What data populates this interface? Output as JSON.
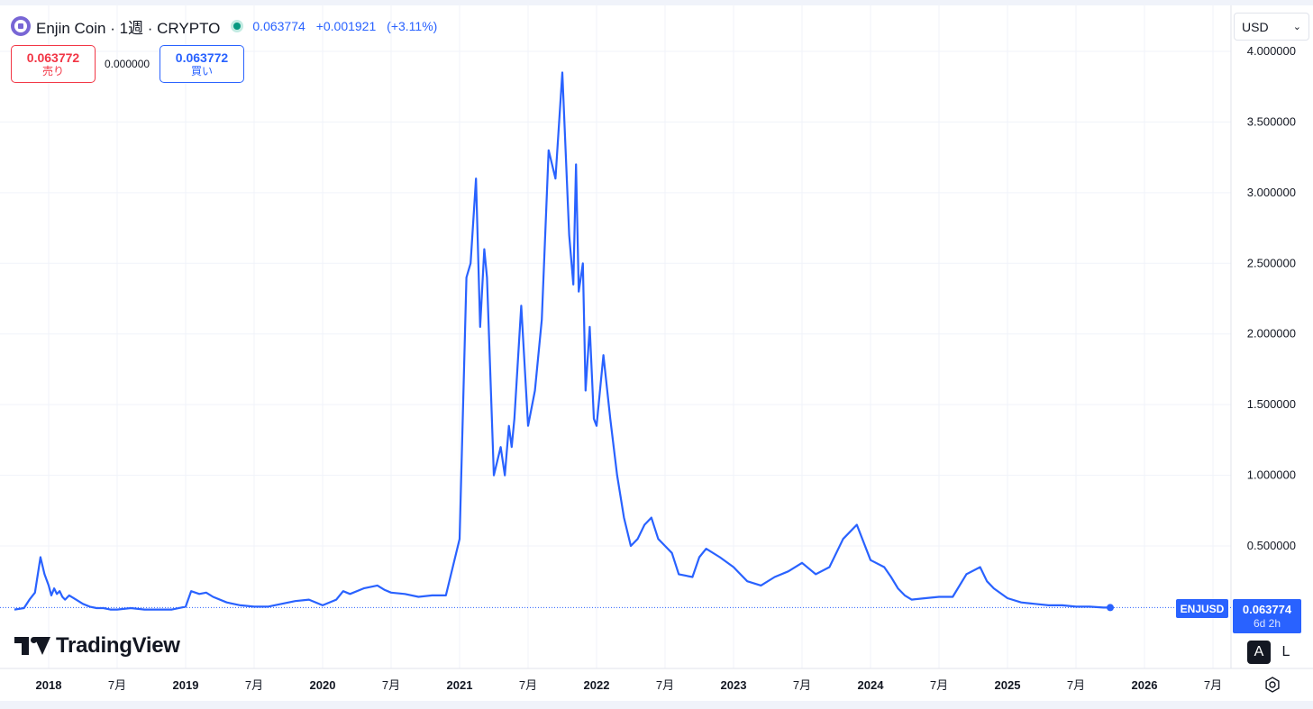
{
  "header": {
    "symbol_title": "Enjin Coin · 1週 · CRYPTO",
    "last_price": "0.063774",
    "change": "+0.001921",
    "change_pct": "(+3.11%)"
  },
  "trade": {
    "sell_price": "0.063772",
    "sell_label": "売り",
    "spread": "0.000000",
    "buy_price": "0.063772",
    "buy_label": "買い"
  },
  "currency": {
    "selected": "USD"
  },
  "branding": {
    "logo_text": "TradingView"
  },
  "price_tag": {
    "symbol": "ENJUSD",
    "price": "0.063774",
    "countdown": "6d 2h"
  },
  "scale_buttons": {
    "auto": "A",
    "log": "L"
  },
  "colors": {
    "line": "#2962ff",
    "grid": "#f0f3fa",
    "sell": "#f23645",
    "buy": "#2962ff",
    "status": "#089981"
  },
  "icons": {
    "settings": "settings-icon",
    "dropdown": "chevron-down-icon",
    "coin": "enjin-coin-icon"
  },
  "chart_data": {
    "type": "line",
    "title": "",
    "xlabel": "",
    "ylabel": "",
    "ylim": [
      -0.05,
      4.2
    ],
    "y_ticks": [
      "0.500000",
      "1.000000",
      "1.500000",
      "2.000000",
      "2.500000",
      "3.000000",
      "3.500000",
      "4.000000"
    ],
    "y_tick_values": [
      0.5,
      1.0,
      1.5,
      2.0,
      2.5,
      3.0,
      3.5,
      4.0
    ],
    "x_ticks": [
      "2018",
      "7月",
      "2019",
      "7月",
      "2020",
      "7月",
      "2021",
      "7月",
      "2022",
      "7月",
      "2023",
      "7月",
      "2024",
      "7月",
      "2025",
      "7月",
      "2026",
      "7月"
    ],
    "x_tick_dates": [
      2018.0,
      2018.5,
      2019.0,
      2019.5,
      2020.0,
      2020.5,
      2021.0,
      2021.5,
      2022.0,
      2022.5,
      2023.0,
      2023.5,
      2024.0,
      2024.5,
      2025.0,
      2025.5,
      2026.0,
      2026.5
    ],
    "x_tick_bold": [
      true,
      false,
      true,
      false,
      true,
      false,
      true,
      false,
      true,
      false,
      true,
      false,
      true,
      false,
      true,
      false,
      true,
      false
    ],
    "last_value": 0.063774,
    "series": [
      {
        "x": [
          2017.75,
          2017.82,
          2017.86,
          2017.9,
          2017.94,
          2017.97,
          2018.0,
          2018.02,
          2018.04,
          2018.06,
          2018.08,
          2018.1,
          2018.12,
          2018.15,
          2018.2,
          2018.25,
          2018.3,
          2018.35,
          2018.4,
          2018.45,
          2018.5,
          2018.6,
          2018.7,
          2018.8,
          2018.9,
          2019.0,
          2019.04,
          2019.1,
          2019.15,
          2019.2,
          2019.3,
          2019.4,
          2019.5,
          2019.6,
          2019.7,
          2019.8,
          2019.9,
          2020.0,
          2020.1,
          2020.15,
          2020.2,
          2020.3,
          2020.4,
          2020.45,
          2020.5,
          2020.6,
          2020.7,
          2020.8,
          2020.9,
          2021.0,
          2021.05,
          2021.08,
          2021.12,
          2021.15,
          2021.18,
          2021.2,
          2021.25,
          2021.3,
          2021.33,
          2021.36,
          2021.38,
          2021.4,
          2021.45,
          2021.5,
          2021.55,
          2021.6,
          2021.65,
          2021.7,
          2021.75,
          2021.8,
          2021.83,
          2021.85,
          2021.87,
          2021.9,
          2021.92,
          2021.95,
          2021.98,
          2022.0,
          2022.05,
          2022.1,
          2022.15,
          2022.2,
          2022.25,
          2022.3,
          2022.35,
          2022.4,
          2022.45,
          2022.5,
          2022.55,
          2022.6,
          2022.7,
          2022.75,
          2022.8,
          2022.9,
          2023.0,
          2023.05,
          2023.1,
          2023.2,
          2023.3,
          2023.4,
          2023.5,
          2023.6,
          2023.7,
          2023.8,
          2023.9,
          2024.0,
          2024.1,
          2024.15,
          2024.2,
          2024.25,
          2024.3,
          2024.4,
          2024.5,
          2024.6,
          2024.7,
          2024.8,
          2024.85,
          2024.9,
          2025.0,
          2025.1,
          2025.2,
          2025.3,
          2025.4,
          2025.5,
          2025.6,
          2025.7,
          2025.75
        ],
        "values": [
          0.05,
          0.06,
          0.12,
          0.17,
          0.42,
          0.3,
          0.22,
          0.15,
          0.2,
          0.16,
          0.18,
          0.14,
          0.12,
          0.15,
          0.12,
          0.09,
          0.07,
          0.06,
          0.06,
          0.05,
          0.05,
          0.06,
          0.05,
          0.05,
          0.05,
          0.07,
          0.18,
          0.16,
          0.17,
          0.14,
          0.1,
          0.08,
          0.07,
          0.07,
          0.09,
          0.11,
          0.12,
          0.08,
          0.12,
          0.18,
          0.16,
          0.2,
          0.22,
          0.19,
          0.17,
          0.16,
          0.14,
          0.15,
          0.15,
          0.55,
          2.4,
          2.5,
          3.1,
          2.05,
          2.6,
          2.4,
          1.0,
          1.2,
          1.0,
          1.35,
          1.2,
          1.4,
          2.2,
          1.35,
          1.6,
          2.1,
          3.3,
          3.1,
          3.85,
          2.7,
          2.35,
          3.2,
          2.3,
          2.5,
          1.6,
          2.05,
          1.4,
          1.35,
          1.85,
          1.4,
          1.0,
          0.7,
          0.5,
          0.55,
          0.65,
          0.7,
          0.55,
          0.5,
          0.45,
          0.3,
          0.28,
          0.42,
          0.48,
          0.42,
          0.35,
          0.3,
          0.25,
          0.22,
          0.28,
          0.32,
          0.38,
          0.3,
          0.35,
          0.55,
          0.65,
          0.4,
          0.35,
          0.28,
          0.2,
          0.15,
          0.12,
          0.13,
          0.14,
          0.14,
          0.3,
          0.35,
          0.25,
          0.2,
          0.13,
          0.1,
          0.09,
          0.08,
          0.08,
          0.07,
          0.07,
          0.064,
          0.064
        ]
      }
    ]
  }
}
